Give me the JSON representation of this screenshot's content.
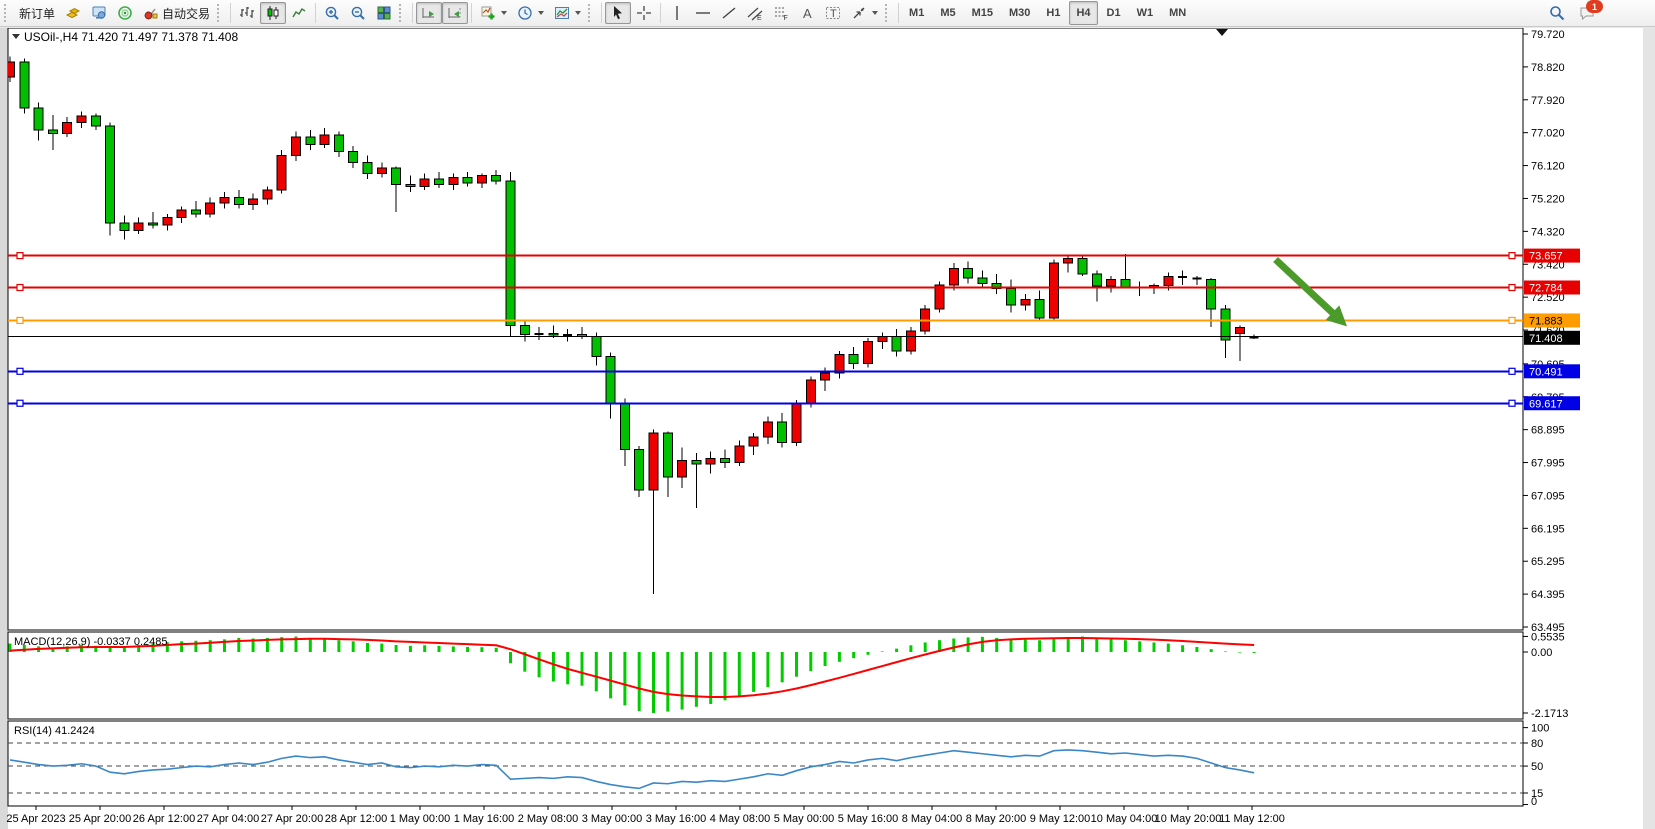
{
  "toolbar": {
    "new_order_label": "新订单",
    "autotrading_label": "自动交易",
    "timeframes": [
      "M1",
      "M5",
      "M15",
      "M30",
      "H1",
      "H4",
      "D1",
      "W1",
      "MN"
    ],
    "active_timeframe": "H4",
    "notification_count": "1",
    "tools": {
      "channel_letter": "E",
      "fibo_letter": "F",
      "text_letter": "A",
      "label_letter": "T"
    }
  },
  "chart_data": {
    "type": "candlestick",
    "title": "USOil-,H4  71.420 71.497 71.378 71.408",
    "symbol": "USOil-",
    "timeframe": "H4",
    "ohlc_current": {
      "open": 71.42,
      "high": 71.497,
      "low": 71.378,
      "close": 71.408
    },
    "current_price": 71.408,
    "colors": {
      "up": "#ee0000",
      "down": "#00c000",
      "wick": "#000000",
      "macd_hist": "#00cc00",
      "macd_signal": "#ff0000",
      "rsi_line": "#3a87c8",
      "arrow": "#4c9a2a"
    },
    "price_axis_ticks": [
      79.72,
      78.82,
      77.92,
      77.02,
      76.12,
      75.22,
      74.32,
      73.42,
      72.52,
      71.62,
      70.695,
      69.795,
      68.895,
      67.995,
      67.095,
      66.195,
      65.295,
      64.395,
      63.495
    ],
    "time_axis_labels": [
      "25 Apr 2023",
      "25 Apr 20:00",
      "26 Apr 12:00",
      "27 Apr 04:00",
      "27 Apr 20:00",
      "28 Apr 12:00",
      "1 May 00:00",
      "1 May 16:00",
      "2 May 08:00",
      "3 May 00:00",
      "3 May 16:00",
      "4 May 08:00",
      "5 May 00:00",
      "5 May 16:00",
      "8 May 04:00",
      "8 May 20:00",
      "9 May 12:00",
      "10 May 04:00",
      "10 May 20:00",
      "11 May 12:00"
    ],
    "horizontal_lines": [
      {
        "price": 73.657,
        "color": "#e60000",
        "text": "#ffffff",
        "badge": true
      },
      {
        "price": 72.784,
        "color": "#e60000",
        "text": "#ffffff",
        "badge": true
      },
      {
        "price": 71.883,
        "color": "#ff9c00",
        "text": "#000000",
        "badge": true
      },
      {
        "price": 70.491,
        "color": "#0000e6",
        "text": "#ffffff",
        "badge": true
      },
      {
        "price": 69.617,
        "color": "#0000e6",
        "text": "#ffffff",
        "badge": true
      },
      {
        "price": 71.44,
        "color": "#000000",
        "text": "#ffffff",
        "badge": false
      }
    ],
    "arrow": {
      "from_index": 88.5,
      "from_price": 73.55,
      "to_index": 93.5,
      "to_price": 71.72,
      "color": "#4c9a2a"
    },
    "candles": [
      [
        78.55,
        79.1,
        78.4,
        78.95
      ],
      [
        78.95,
        79.05,
        77.55,
        77.7
      ],
      [
        77.7,
        77.85,
        76.8,
        77.1
      ],
      [
        77.1,
        77.5,
        76.55,
        77.0
      ],
      [
        77.0,
        77.45,
        76.9,
        77.3
      ],
      [
        77.3,
        77.6,
        77.15,
        77.48
      ],
      [
        77.48,
        77.55,
        77.1,
        77.2
      ],
      [
        77.2,
        77.3,
        74.2,
        74.55
      ],
      [
        74.55,
        74.75,
        74.1,
        74.35
      ],
      [
        74.35,
        74.7,
        74.25,
        74.55
      ],
      [
        74.55,
        74.85,
        74.4,
        74.5
      ],
      [
        74.5,
        74.8,
        74.35,
        74.7
      ],
      [
        74.7,
        75.0,
        74.55,
        74.9
      ],
      [
        74.9,
        75.15,
        74.7,
        74.8
      ],
      [
        74.8,
        75.25,
        74.7,
        75.1
      ],
      [
        75.1,
        75.4,
        74.95,
        75.25
      ],
      [
        75.25,
        75.45,
        74.95,
        75.05
      ],
      [
        75.05,
        75.35,
        74.9,
        75.2
      ],
      [
        75.2,
        75.55,
        75.05,
        75.45
      ],
      [
        75.45,
        76.55,
        75.35,
        76.4
      ],
      [
        76.4,
        77.05,
        76.25,
        76.9
      ],
      [
        76.9,
        77.1,
        76.55,
        76.7
      ],
      [
        76.7,
        77.15,
        76.6,
        76.95
      ],
      [
        76.95,
        77.05,
        76.35,
        76.5
      ],
      [
        76.5,
        76.65,
        76.05,
        76.2
      ],
      [
        76.2,
        76.4,
        75.75,
        75.9
      ],
      [
        75.9,
        76.2,
        75.8,
        76.05
      ],
      [
        76.05,
        76.1,
        74.85,
        75.6
      ],
      [
        75.6,
        75.85,
        75.4,
        75.55
      ],
      [
        75.55,
        75.9,
        75.45,
        75.75
      ],
      [
        75.75,
        75.95,
        75.5,
        75.6
      ],
      [
        75.6,
        75.9,
        75.45,
        75.8
      ],
      [
        75.8,
        75.95,
        75.55,
        75.65
      ],
      [
        75.65,
        75.9,
        75.5,
        75.85
      ],
      [
        75.85,
        76.0,
        75.6,
        75.7
      ],
      [
        75.7,
        75.95,
        71.45,
        71.75
      ],
      [
        71.75,
        71.85,
        71.3,
        71.5
      ],
      [
        71.5,
        71.7,
        71.35,
        71.52
      ],
      [
        71.52,
        71.75,
        71.4,
        71.48
      ],
      [
        71.48,
        71.65,
        71.3,
        71.5
      ],
      [
        71.5,
        71.7,
        71.38,
        71.45
      ],
      [
        71.45,
        71.55,
        70.65,
        70.9
      ],
      [
        70.9,
        71.0,
        69.2,
        69.6
      ],
      [
        69.6,
        69.75,
        67.9,
        68.35
      ],
      [
        68.35,
        68.45,
        67.05,
        67.25
      ],
      [
        67.25,
        68.9,
        64.4,
        68.8
      ],
      [
        68.8,
        68.85,
        67.05,
        67.6
      ],
      [
        67.6,
        68.4,
        67.3,
        68.05
      ],
      [
        68.05,
        68.25,
        66.75,
        67.95
      ],
      [
        67.95,
        68.3,
        67.7,
        68.1
      ],
      [
        68.1,
        68.35,
        67.85,
        68.0
      ],
      [
        68.0,
        68.6,
        67.9,
        68.45
      ],
      [
        68.45,
        68.8,
        68.2,
        68.7
      ],
      [
        68.7,
        69.25,
        68.5,
        69.1
      ],
      [
        69.1,
        69.35,
        68.4,
        68.55
      ],
      [
        68.55,
        69.7,
        68.45,
        69.6
      ],
      [
        69.6,
        70.35,
        69.5,
        70.25
      ],
      [
        70.25,
        70.6,
        69.95,
        70.45
      ],
      [
        70.45,
        71.05,
        70.3,
        70.95
      ],
      [
        70.95,
        71.15,
        70.55,
        70.7
      ],
      [
        70.7,
        71.4,
        70.6,
        71.3
      ],
      [
        71.3,
        71.55,
        71.1,
        71.45
      ],
      [
        71.45,
        71.65,
        70.9,
        71.05
      ],
      [
        71.05,
        71.7,
        70.95,
        71.6
      ],
      [
        71.6,
        72.3,
        71.5,
        72.2
      ],
      [
        72.2,
        72.95,
        72.1,
        72.85
      ],
      [
        72.85,
        73.45,
        72.7,
        73.3
      ],
      [
        73.3,
        73.5,
        72.9,
        73.05
      ],
      [
        73.05,
        73.25,
        72.75,
        72.9
      ],
      [
        72.9,
        73.15,
        72.6,
        72.75
      ],
      [
        72.75,
        73.0,
        72.1,
        72.3
      ],
      [
        72.3,
        72.6,
        72.15,
        72.45
      ],
      [
        72.45,
        72.7,
        71.9,
        71.95
      ],
      [
        71.95,
        73.55,
        71.85,
        73.45
      ],
      [
        73.45,
        73.66,
        73.2,
        73.58
      ],
      [
        73.58,
        73.65,
        73.1,
        73.15
      ],
      [
        73.15,
        73.25,
        72.4,
        72.82
      ],
      [
        72.82,
        73.1,
        72.65,
        73.0
      ],
      [
        73.0,
        73.7,
        72.75,
        72.8
      ],
      [
        72.8,
        72.95,
        72.55,
        72.78
      ],
      [
        72.78,
        72.9,
        72.6,
        72.84
      ],
      [
        72.84,
        73.2,
        72.7,
        73.08
      ],
      [
        73.08,
        73.25,
        72.85,
        73.05
      ],
      [
        73.05,
        73.1,
        72.85,
        73.02
      ],
      [
        73.0,
        73.05,
        71.7,
        72.2
      ],
      [
        72.2,
        72.3,
        70.85,
        71.35
      ],
      [
        71.53,
        71.75,
        70.77,
        71.69
      ],
      [
        71.42,
        71.497,
        71.378,
        71.408
      ]
    ],
    "macd": {
      "label": "MACD(12,26,9) -0.0337 0.2485",
      "params": "12,26,9",
      "main_value": -0.0337,
      "signal_value": 0.2485,
      "axis_ticks": [
        {
          "v": 0.5535,
          "label": "0.5535"
        },
        {
          "v": 0.0,
          "label": "0.00"
        },
        {
          "v": -2.1713,
          "label": "-2.1713"
        }
      ],
      "main": [
        0.3,
        0.25,
        0.2,
        0.16,
        0.2,
        0.26,
        0.22,
        0.15,
        0.18,
        0.25,
        0.3,
        0.35,
        0.38,
        0.4,
        0.42,
        0.45,
        0.5,
        0.48,
        0.5,
        0.53,
        0.55,
        0.5,
        0.48,
        0.42,
        0.38,
        0.32,
        0.3,
        0.25,
        0.22,
        0.24,
        0.22,
        0.2,
        0.18,
        0.17,
        0.15,
        -0.4,
        -0.7,
        -0.9,
        -1.05,
        -1.15,
        -1.2,
        -1.4,
        -1.65,
        -1.9,
        -2.1,
        -2.17,
        -2.12,
        -2.05,
        -1.95,
        -1.85,
        -1.72,
        -1.58,
        -1.42,
        -1.25,
        -1.08,
        -0.88,
        -0.68,
        -0.5,
        -0.35,
        -0.22,
        -0.1,
        0.02,
        0.12,
        0.24,
        0.34,
        0.42,
        0.48,
        0.52,
        0.54,
        0.5,
        0.46,
        0.44,
        0.42,
        0.5,
        0.53,
        0.55,
        0.5,
        0.46,
        0.42,
        0.38,
        0.34,
        0.3,
        0.24,
        0.18,
        0.1,
        0.02,
        -0.02,
        -0.0337
      ],
      "signal": [
        0.05,
        0.08,
        0.11,
        0.13,
        0.15,
        0.17,
        0.18,
        0.18,
        0.18,
        0.2,
        0.22,
        0.25,
        0.28,
        0.3,
        0.33,
        0.36,
        0.39,
        0.41,
        0.43,
        0.45,
        0.46,
        0.47,
        0.47,
        0.46,
        0.45,
        0.43,
        0.41,
        0.38,
        0.36,
        0.34,
        0.32,
        0.3,
        0.28,
        0.26,
        0.24,
        0.1,
        -0.08,
        -0.26,
        -0.44,
        -0.6,
        -0.74,
        -0.88,
        -1.02,
        -1.16,
        -1.3,
        -1.42,
        -1.5,
        -1.55,
        -1.58,
        -1.6,
        -1.6,
        -1.58,
        -1.54,
        -1.48,
        -1.4,
        -1.3,
        -1.18,
        -1.05,
        -0.92,
        -0.78,
        -0.64,
        -0.5,
        -0.36,
        -0.22,
        -0.09,
        0.04,
        0.16,
        0.27,
        0.36,
        0.42,
        0.45,
        0.47,
        0.48,
        0.49,
        0.5,
        0.5,
        0.49,
        0.48,
        0.47,
        0.46,
        0.44,
        0.42,
        0.39,
        0.36,
        0.33,
        0.3,
        0.27,
        0.2485
      ]
    },
    "rsi": {
      "label": "RSI(14) 41.2424",
      "period": 14,
      "value": 41.2424,
      "levels": [
        80,
        50,
        15
      ],
      "axis_ticks": [
        100,
        80,
        50,
        15,
        0
      ],
      "values": [
        58,
        55,
        52,
        50,
        51,
        53,
        50,
        42,
        40,
        43,
        45,
        46,
        48,
        50,
        49,
        52,
        54,
        52,
        55,
        60,
        63,
        61,
        62,
        58,
        55,
        52,
        54,
        49,
        48,
        50,
        49,
        51,
        50,
        52,
        51,
        33,
        34,
        35,
        34,
        36,
        35,
        30,
        26,
        23,
        21,
        28,
        27,
        30,
        29,
        31,
        30,
        33,
        36,
        40,
        38,
        44,
        49,
        52,
        56,
        54,
        58,
        60,
        57,
        61,
        64,
        67,
        70,
        68,
        66,
        64,
        62,
        64,
        63,
        70,
        71,
        70,
        68,
        66,
        67,
        65,
        63,
        64,
        63,
        60,
        54,
        48,
        45,
        41.24
      ]
    }
  }
}
